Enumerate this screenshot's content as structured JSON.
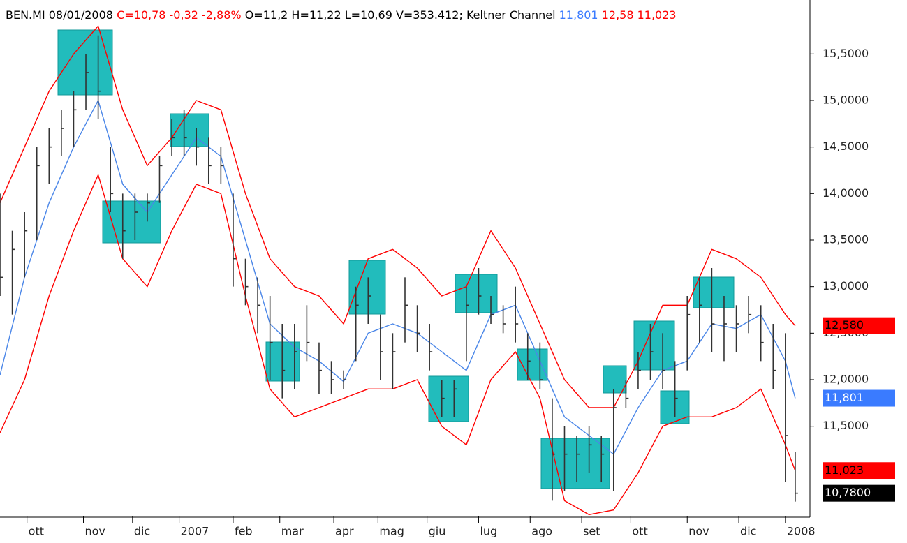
{
  "chart_data": {
    "type": "ohlc",
    "header": [
      {
        "text": "BEN.MI 08/01/2008 ",
        "color": "#000000"
      },
      {
        "text": "C=10,78 -0,32 -2,88% ",
        "color": "#ff0000"
      },
      {
        "text": "O=11,2 H=11,22 L=10,69 V=353.412; Keltner Channel ",
        "color": "#000000"
      },
      {
        "text": "11,801 ",
        "color": "#3a7bff"
      },
      {
        "text": "12,58 11,023",
        "color": "#ff0000"
      }
    ],
    "xlim": [
      0,
      330
    ],
    "ylim": [
      10.53,
      16.08
    ],
    "xticks": [
      {
        "value": 11,
        "label": "ott"
      },
      {
        "value": 34,
        "label": "nov"
      },
      {
        "value": 54,
        "label": "dic"
      },
      {
        "value": 73,
        "label": "2007"
      },
      {
        "value": 95,
        "label": "feb"
      },
      {
        "value": 114,
        "label": "mar"
      },
      {
        "value": 136,
        "label": "apr"
      },
      {
        "value": 154,
        "label": "mag"
      },
      {
        "value": 174,
        "label": "giu"
      },
      {
        "value": 195,
        "label": "lug"
      },
      {
        "value": 216,
        "label": "ago"
      },
      {
        "value": 237,
        "label": "set"
      },
      {
        "value": 257,
        "label": "ott"
      },
      {
        "value": 280,
        "label": "nov"
      },
      {
        "value": 301,
        "label": "dic"
      },
      {
        "value": 320,
        "label": "2008"
      }
    ],
    "yticks": [
      {
        "value": 15.5,
        "label": "15,5000"
      },
      {
        "value": 15,
        "label": "15,0000"
      },
      {
        "value": 14.5,
        "label": "14,5000"
      },
      {
        "value": 14,
        "label": "14,0000"
      },
      {
        "value": 13.5,
        "label": "13,5000"
      },
      {
        "value": 13,
        "label": "13,0000"
      },
      {
        "value": 12.5,
        "label": "12,5000"
      },
      {
        "value": 12,
        "label": "12,0000"
      },
      {
        "value": 11.5,
        "label": "11,5000"
      }
    ],
    "bar_color": "#333333",
    "x": [
      0,
      5,
      10,
      15,
      20,
      25,
      30,
      35,
      40,
      45,
      50,
      55,
      60,
      65,
      70,
      75,
      80,
      85,
      90,
      95,
      100,
      105,
      110,
      115,
      120,
      125,
      130,
      135,
      140,
      145,
      150,
      155,
      160,
      165,
      170,
      175,
      180,
      185,
      190,
      195,
      200,
      205,
      210,
      215,
      220,
      225,
      230,
      235,
      240,
      245,
      250,
      255,
      260,
      265,
      270,
      275,
      280,
      285,
      290,
      295,
      300,
      305,
      310,
      315,
      320,
      324
    ],
    "high": [
      14.0,
      13.6,
      13.8,
      14.5,
      14.7,
      14.9,
      15.1,
      15.5,
      15.7,
      14.5,
      14.0,
      14.0,
      14.0,
      14.4,
      14.8,
      14.9,
      14.7,
      14.6,
      14.5,
      14.0,
      13.3,
      13.1,
      12.9,
      12.6,
      12.6,
      12.8,
      12.4,
      12.2,
      12.1,
      13.0,
      13.1,
      12.7,
      12.5,
      13.1,
      12.8,
      12.6,
      12.0,
      12.0,
      13.0,
      13.2,
      12.9,
      12.8,
      13.0,
      12.5,
      12.4,
      11.8,
      11.5,
      11.4,
      11.5,
      11.4,
      11.9,
      12.0,
      12.3,
      12.6,
      12.5,
      12.2,
      12.9,
      13.1,
      13.2,
      12.9,
      12.8,
      12.9,
      12.8,
      12.6,
      12.5,
      11.22
    ],
    "low": [
      12.9,
      12.7,
      13.1,
      13.5,
      14.1,
      14.4,
      14.5,
      14.9,
      14.8,
      13.8,
      13.3,
      13.5,
      13.7,
      13.9,
      14.4,
      14.4,
      14.3,
      14.1,
      14.1,
      13.0,
      12.8,
      12.5,
      12.0,
      11.8,
      11.9,
      12.2,
      11.85,
      11.85,
      11.9,
      12.2,
      12.6,
      12.0,
      11.9,
      12.4,
      12.3,
      12.1,
      11.6,
      11.6,
      12.2,
      12.7,
      12.6,
      12.5,
      12.4,
      12.0,
      11.9,
      10.7,
      10.8,
      10.9,
      11.0,
      10.9,
      10.8,
      11.7,
      11.9,
      12.0,
      11.9,
      11.6,
      12.1,
      12.4,
      12.3,
      12.2,
      12.3,
      12.5,
      12.2,
      11.9,
      10.9,
      10.69
    ],
    "close": [
      13.1,
      13.4,
      13.6,
      14.3,
      14.5,
      14.7,
      14.9,
      15.3,
      15.1,
      14.0,
      13.6,
      13.8,
      13.9,
      14.3,
      14.6,
      14.6,
      14.5,
      14.3,
      14.3,
      13.3,
      13.0,
      12.8,
      12.4,
      12.1,
      12.3,
      12.4,
      12.1,
      12.0,
      12.0,
      12.8,
      12.9,
      12.3,
      12.3,
      12.8,
      12.5,
      12.3,
      11.8,
      11.9,
      12.8,
      12.9,
      12.7,
      12.6,
      12.6,
      12.2,
      12.0,
      11.2,
      11.2,
      11.2,
      11.3,
      11.2,
      11.7,
      11.8,
      12.1,
      12.3,
      12.1,
      11.8,
      12.7,
      12.8,
      12.6,
      12.6,
      12.6,
      12.7,
      12.4,
      12.1,
      11.4,
      10.78
    ],
    "channel": {
      "x": [
        0,
        10,
        20,
        30,
        40,
        50,
        60,
        70,
        80,
        90,
        100,
        110,
        120,
        130,
        140,
        150,
        160,
        170,
        180,
        190,
        200,
        210,
        220,
        230,
        240,
        250,
        260,
        270,
        280,
        290,
        300,
        310,
        320,
        324
      ],
      "upper": {
        "color": "#ff0000",
        "values": [
          13.9,
          14.5,
          15.1,
          15.5,
          15.8,
          14.9,
          14.3,
          14.6,
          15.0,
          14.9,
          14.0,
          13.3,
          13.0,
          12.9,
          12.6,
          13.3,
          13.4,
          13.2,
          12.9,
          13.0,
          13.6,
          13.2,
          12.6,
          12.0,
          11.7,
          11.7,
          12.2,
          12.8,
          12.8,
          13.4,
          13.3,
          13.1,
          12.7,
          12.58
        ]
      },
      "middle": {
        "color": "#4a86e8",
        "values": [
          12.05,
          13.1,
          13.9,
          14.5,
          15.0,
          14.1,
          13.8,
          14.2,
          14.6,
          14.4,
          13.5,
          12.6,
          12.35,
          12.2,
          11.98,
          12.5,
          12.6,
          12.5,
          12.3,
          12.1,
          12.7,
          12.8,
          12.2,
          11.6,
          11.4,
          11.2,
          11.7,
          12.1,
          12.2,
          12.6,
          12.55,
          12.7,
          12.2,
          11.801
        ]
      },
      "lower": {
        "color": "#ff0000",
        "values": [
          11.43,
          12.0,
          12.9,
          13.6,
          14.2,
          13.3,
          13.0,
          13.6,
          14.1,
          14.0,
          12.9,
          11.9,
          11.6,
          11.7,
          11.8,
          11.9,
          11.9,
          12.0,
          11.5,
          11.3,
          12.0,
          12.3,
          11.8,
          10.7,
          10.55,
          10.6,
          11.0,
          11.5,
          11.6,
          11.6,
          11.7,
          11.9,
          11.3,
          11.023
        ]
      }
    },
    "last_labels": [
      {
        "value": 12.58,
        "label": "12,580",
        "color": "#ff0000",
        "text_color": "#000000"
      },
      {
        "value": 11.801,
        "label": "11,801",
        "color": "#3a7bff",
        "text_color": "#ffffff"
      },
      {
        "value": 11.023,
        "label": "11,023",
        "color": "#ff0000",
        "text_color": "#000000"
      },
      {
        "value": 10.78,
        "label": "10,7800",
        "color": "#000000",
        "text_color": "#ffffff"
      }
    ]
  }
}
